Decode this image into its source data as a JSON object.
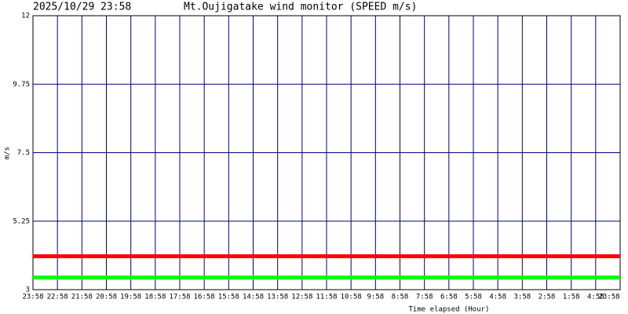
{
  "chart_data": {
    "type": "line",
    "timestamp": "2025/10/29 23:58",
    "title": "Mt.Oujigatake wind monitor (SPEED m/s)",
    "y_label": "m/s",
    "x_label": "Time elapsed (Hour)",
    "categories": [
      "23:58",
      "22:58",
      "21:58",
      "20:58",
      "19:58",
      "18:58",
      "17:58",
      "16:58",
      "15:58",
      "14:58",
      "13:58",
      "12:58",
      "11:58",
      "10:58",
      "9:58",
      "8:58",
      "7:58",
      "6:58",
      "5:58",
      "4:58",
      "3:58",
      "2:58",
      "1:58",
      "4:58",
      "23:58"
    ],
    "series": [
      {
        "color": "#ff0000",
        "values": [
          4.1,
          4.1,
          4.1,
          4.1,
          4.1,
          4.1,
          4.1,
          4.1,
          4.1,
          4.1,
          4.1,
          4.1,
          4.1,
          4.1,
          4.1,
          4.1,
          4.1,
          4.1,
          4.1,
          4.1,
          4.1,
          4.1,
          4.1,
          4.1,
          4.1
        ]
      },
      {
        "color": "#00ff00",
        "values": [
          3.4,
          3.4,
          3.4,
          3.4,
          3.4,
          3.4,
          3.4,
          3.4,
          3.4,
          3.4,
          3.4,
          3.4,
          3.4,
          3.4,
          3.4,
          3.4,
          3.4,
          3.4,
          3.4,
          3.4,
          3.4,
          3.4,
          3.4,
          3.4,
          3.4
        ]
      }
    ],
    "ylim": [
      3,
      12
    ],
    "yticks": [
      3,
      5.25,
      7.5,
      9.75,
      12
    ],
    "grid": true,
    "grid_color": "#000080"
  }
}
